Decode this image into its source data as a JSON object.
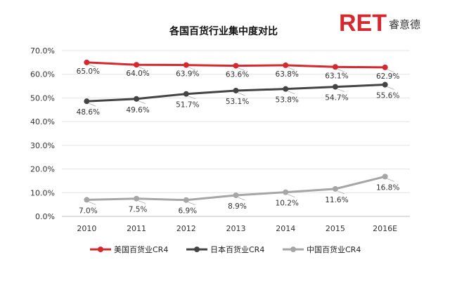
{
  "logo": {
    "brand": "RET",
    "subtitle": "睿意德",
    "color": "#d7282f"
  },
  "chart_data": {
    "type": "line",
    "title": "各国百货行业集中度对比",
    "xlabel": "",
    "ylabel": "",
    "categories": [
      "2010",
      "2011",
      "2012",
      "2013",
      "2014",
      "2015",
      "2016E"
    ],
    "ylim": [
      0,
      70
    ],
    "yticks": [
      "0.0%",
      "10.0%",
      "20.0%",
      "30.0%",
      "40.0%",
      "50.0%",
      "60.0%",
      "70.0%"
    ],
    "grid": true,
    "legend_position": "bottom",
    "series": [
      {
        "name": "美国百货业CR4",
        "color": "#d7282f",
        "values": [
          65.0,
          64.0,
          63.9,
          63.6,
          63.8,
          63.1,
          62.9
        ],
        "labels": [
          "65.0%",
          "64.0%",
          "63.9%",
          "63.6%",
          "63.8%",
          "63.1%",
          "62.9%"
        ]
      },
      {
        "name": "日本百货业CR4",
        "color": "#444444",
        "values": [
          48.6,
          49.6,
          51.7,
          53.1,
          53.8,
          54.7,
          55.6
        ],
        "labels": [
          "48.6%",
          "49.6%",
          "51.7%",
          "53.1%",
          "53.8%",
          "54.7%",
          "55.6%"
        ]
      },
      {
        "name": "中国百货业CR4",
        "color": "#a6a6a6",
        "values": [
          7.0,
          7.5,
          6.9,
          8.9,
          10.2,
          11.6,
          16.8
        ],
        "labels": [
          "7.0%",
          "7.5%",
          "6.9%",
          "8.9%",
          "10.2%",
          "11.6%",
          "16.8%"
        ]
      }
    ]
  }
}
